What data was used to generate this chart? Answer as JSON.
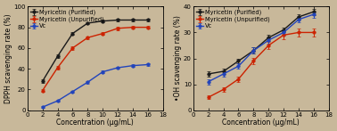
{
  "x": [
    2,
    4,
    6,
    8,
    10,
    12,
    14,
    16
  ],
  "dpph": {
    "purified": [
      28,
      52,
      74,
      84,
      86,
      87,
      87,
      87
    ],
    "unpurified": [
      19,
      41,
      60,
      70,
      74,
      79,
      80,
      80
    ],
    "vc": [
      3,
      9,
      18,
      27,
      37,
      41,
      43,
      44
    ]
  },
  "dpph_err": {
    "purified": [
      1.5,
      1.5,
      1.5,
      1.2,
      1.2,
      1.2,
      1.2,
      1.2
    ],
    "unpurified": [
      1.5,
      1.5,
      1.5,
      1.5,
      1.5,
      1.5,
      1.5,
      1.5
    ],
    "vc": [
      0.8,
      0.8,
      1.0,
      1.2,
      1.2,
      1.2,
      1.2,
      1.2
    ]
  },
  "oh": {
    "purified": [
      14,
      15,
      19,
      23,
      28,
      31,
      36,
      38
    ],
    "unpurified": [
      5,
      8,
      12,
      19,
      25,
      29,
      30,
      30
    ],
    "vc": [
      11,
      14,
      17,
      23,
      27,
      30,
      35,
      37
    ]
  },
  "oh_err": {
    "purified": [
      1.0,
      1.0,
      1.0,
      1.2,
      1.2,
      1.0,
      1.2,
      1.2
    ],
    "unpurified": [
      0.8,
      0.8,
      1.0,
      1.2,
      1.5,
      1.5,
      1.5,
      1.5
    ],
    "vc": [
      1.0,
      1.0,
      1.0,
      1.2,
      1.2,
      1.2,
      1.2,
      1.2
    ]
  },
  "colors": {
    "purified": "#1a1a1a",
    "unpurified": "#cc2200",
    "vc": "#2244bb"
  },
  "legend_labels": [
    "Myricetin (Purified)",
    "Myricetin (Unpurified)",
    "Vc"
  ],
  "dpph_ylabel": "DPPH scavenging rate (%)",
  "oh_ylabel": "•OH scavenging rate (%)",
  "xlabel": "Concentration (μg/mL)",
  "dpph_ylim": [
    0,
    100
  ],
  "oh_ylim": [
    0,
    40
  ],
  "dpph_yticks": [
    0,
    20,
    40,
    60,
    80,
    100
  ],
  "oh_yticks": [
    0,
    10,
    20,
    30,
    40
  ],
  "xticks": [
    0,
    2,
    4,
    6,
    8,
    10,
    12,
    14,
    16,
    18
  ],
  "marker": "o",
  "markersize": 2.5,
  "linewidth": 1.0,
  "capsize": 1.5,
  "elinewidth": 0.7,
  "fontsize_label": 5.5,
  "fontsize_tick": 5.0,
  "fontsize_legend": 4.8,
  "bg_color": "#c8b89a",
  "plot_bg": "#c8b89a"
}
